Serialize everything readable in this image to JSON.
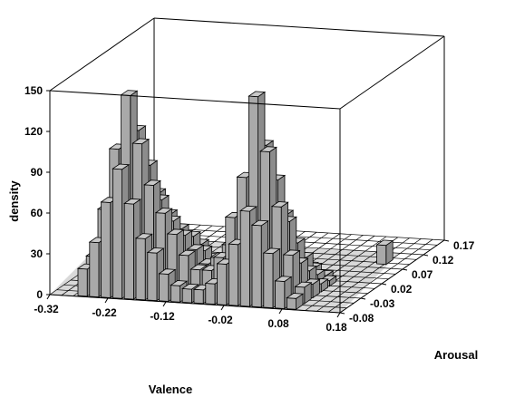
{
  "chart_data": {
    "type": "bar3d-histogram",
    "title": "",
    "xlabel": "Valence",
    "ylabel": "Arousal",
    "zlabel": "density",
    "x_ticks": [
      "-0.32",
      "-0.22",
      "-0.12",
      "-0.02",
      "0.08",
      "0.18"
    ],
    "y_ticks": [
      "-0.08",
      "-0.03",
      "0.02",
      "0.07",
      "0.12",
      "0.17"
    ],
    "z_ticks": [
      "0",
      "30",
      "60",
      "90",
      "120",
      "150"
    ],
    "xlim": [
      -0.32,
      0.18
    ],
    "ylim": [
      -0.08,
      0.17
    ],
    "zlim": [
      0,
      150
    ],
    "x_bin_centers": [
      -0.265,
      -0.245,
      -0.225,
      -0.205,
      -0.185,
      -0.165,
      -0.145,
      -0.125,
      -0.105,
      -0.085,
      -0.065,
      -0.045,
      -0.025,
      -0.005,
      0.015,
      0.035,
      0.055,
      0.075,
      0.095
    ],
    "y_bin_centers": [
      -0.07,
      -0.05,
      -0.03,
      -0.01,
      0.01,
      0.03,
      0.05
    ],
    "bars": [
      {
        "x": -0.265,
        "y": -0.07,
        "z": 20
      },
      {
        "x": -0.245,
        "y": -0.07,
        "z": 40
      },
      {
        "x": -0.225,
        "y": -0.07,
        "z": 70
      },
      {
        "x": -0.205,
        "y": -0.07,
        "z": 95
      },
      {
        "x": -0.185,
        "y": -0.07,
        "z": 70
      },
      {
        "x": -0.165,
        "y": -0.07,
        "z": 45
      },
      {
        "x": -0.145,
        "y": -0.07,
        "z": 35
      },
      {
        "x": -0.125,
        "y": -0.07,
        "z": 20
      },
      {
        "x": -0.105,
        "y": -0.07,
        "z": 12
      },
      {
        "x": -0.085,
        "y": -0.07,
        "z": 10
      },
      {
        "x": -0.065,
        "y": -0.07,
        "z": 10
      },
      {
        "x": -0.045,
        "y": -0.07,
        "z": 15
      },
      {
        "x": -0.025,
        "y": -0.07,
        "z": 30
      },
      {
        "x": -0.005,
        "y": -0.07,
        "z": 45
      },
      {
        "x": 0.015,
        "y": -0.07,
        "z": 70
      },
      {
        "x": 0.035,
        "y": -0.07,
        "z": 60
      },
      {
        "x": 0.055,
        "y": -0.07,
        "z": 40
      },
      {
        "x": 0.075,
        "y": -0.07,
        "z": 20
      },
      {
        "x": 0.095,
        "y": -0.07,
        "z": 8
      },
      {
        "x": -0.265,
        "y": -0.05,
        "z": 25
      },
      {
        "x": -0.245,
        "y": -0.05,
        "z": 60
      },
      {
        "x": -0.225,
        "y": -0.05,
        "z": 105
      },
      {
        "x": -0.205,
        "y": -0.05,
        "z": 145
      },
      {
        "x": -0.185,
        "y": -0.05,
        "z": 110
      },
      {
        "x": -0.165,
        "y": -0.05,
        "z": 80
      },
      {
        "x": -0.145,
        "y": -0.05,
        "z": 60
      },
      {
        "x": -0.125,
        "y": -0.05,
        "z": 45
      },
      {
        "x": -0.105,
        "y": -0.05,
        "z": 30
      },
      {
        "x": -0.085,
        "y": -0.05,
        "z": 20
      },
      {
        "x": -0.065,
        "y": -0.05,
        "z": 20
      },
      {
        "x": -0.045,
        "y": -0.05,
        "z": 30
      },
      {
        "x": -0.025,
        "y": -0.05,
        "z": 60
      },
      {
        "x": -0.005,
        "y": -0.05,
        "z": 90
      },
      {
        "x": 0.015,
        "y": -0.05,
        "z": 150
      },
      {
        "x": 0.035,
        "y": -0.05,
        "z": 110
      },
      {
        "x": 0.055,
        "y": -0.05,
        "z": 70
      },
      {
        "x": 0.075,
        "y": -0.05,
        "z": 35
      },
      {
        "x": 0.095,
        "y": -0.05,
        "z": 12
      },
      {
        "x": -0.265,
        "y": -0.03,
        "z": 15
      },
      {
        "x": -0.245,
        "y": -0.03,
        "z": 45
      },
      {
        "x": -0.225,
        "y": -0.03,
        "z": 80
      },
      {
        "x": -0.205,
        "y": -0.03,
        "z": 115
      },
      {
        "x": -0.185,
        "y": -0.03,
        "z": 90
      },
      {
        "x": -0.165,
        "y": -0.03,
        "z": 65
      },
      {
        "x": -0.145,
        "y": -0.03,
        "z": 50
      },
      {
        "x": -0.125,
        "y": -0.03,
        "z": 40
      },
      {
        "x": -0.105,
        "y": -0.03,
        "z": 30
      },
      {
        "x": -0.085,
        "y": -0.03,
        "z": 20
      },
      {
        "x": -0.065,
        "y": -0.03,
        "z": 25
      },
      {
        "x": -0.045,
        "y": -0.03,
        "z": 35
      },
      {
        "x": -0.025,
        "y": -0.03,
        "z": 55
      },
      {
        "x": -0.005,
        "y": -0.03,
        "z": 80
      },
      {
        "x": 0.015,
        "y": -0.03,
        "z": 110
      },
      {
        "x": 0.035,
        "y": -0.03,
        "z": 85
      },
      {
        "x": 0.055,
        "y": -0.03,
        "z": 55
      },
      {
        "x": 0.075,
        "y": -0.03,
        "z": 25
      },
      {
        "x": 0.095,
        "y": -0.03,
        "z": 10
      },
      {
        "x": -0.265,
        "y": -0.01,
        "z": 10
      },
      {
        "x": -0.245,
        "y": -0.01,
        "z": 30
      },
      {
        "x": -0.225,
        "y": -0.01,
        "z": 55
      },
      {
        "x": -0.205,
        "y": -0.01,
        "z": 75
      },
      {
        "x": -0.185,
        "y": -0.01,
        "z": 65
      },
      {
        "x": -0.165,
        "y": -0.01,
        "z": 50
      },
      {
        "x": -0.145,
        "y": -0.01,
        "z": 40
      },
      {
        "x": -0.125,
        "y": -0.01,
        "z": 35
      },
      {
        "x": -0.105,
        "y": -0.01,
        "z": 25
      },
      {
        "x": -0.085,
        "y": -0.01,
        "z": 15
      },
      {
        "x": -0.065,
        "y": -0.01,
        "z": 20
      },
      {
        "x": -0.045,
        "y": -0.01,
        "z": 30
      },
      {
        "x": -0.025,
        "y": -0.01,
        "z": 45
      },
      {
        "x": -0.005,
        "y": -0.01,
        "z": 60
      },
      {
        "x": 0.015,
        "y": -0.01,
        "z": 75
      },
      {
        "x": 0.035,
        "y": -0.01,
        "z": 55
      },
      {
        "x": 0.055,
        "y": -0.01,
        "z": 35
      },
      {
        "x": 0.075,
        "y": -0.01,
        "z": 15
      },
      {
        "x": 0.095,
        "y": -0.01,
        "z": 6
      },
      {
        "x": -0.265,
        "y": 0.01,
        "z": 5
      },
      {
        "x": -0.245,
        "y": 0.01,
        "z": 15
      },
      {
        "x": -0.225,
        "y": 0.01,
        "z": 30
      },
      {
        "x": -0.205,
        "y": 0.01,
        "z": 45
      },
      {
        "x": -0.185,
        "y": 0.01,
        "z": 40
      },
      {
        "x": -0.165,
        "y": 0.01,
        "z": 35
      },
      {
        "x": -0.145,
        "y": 0.01,
        "z": 30
      },
      {
        "x": -0.125,
        "y": 0.01,
        "z": 25
      },
      {
        "x": -0.105,
        "y": 0.01,
        "z": 15
      },
      {
        "x": -0.085,
        "y": 0.01,
        "z": 10
      },
      {
        "x": -0.065,
        "y": 0.01,
        "z": 15
      },
      {
        "x": -0.045,
        "y": 0.01,
        "z": 20
      },
      {
        "x": -0.025,
        "y": 0.01,
        "z": 30
      },
      {
        "x": -0.005,
        "y": 0.01,
        "z": 40
      },
      {
        "x": 0.015,
        "y": 0.01,
        "z": 45
      },
      {
        "x": 0.035,
        "y": 0.01,
        "z": 30
      },
      {
        "x": 0.055,
        "y": 0.01,
        "z": 20
      },
      {
        "x": 0.075,
        "y": 0.01,
        "z": 8
      },
      {
        "x": 0.095,
        "y": 0.01,
        "z": 4
      },
      {
        "x": -0.245,
        "y": 0.03,
        "z": 5
      },
      {
        "x": -0.225,
        "y": 0.03,
        "z": 12
      },
      {
        "x": -0.205,
        "y": 0.03,
        "z": 18
      },
      {
        "x": -0.185,
        "y": 0.03,
        "z": 20
      },
      {
        "x": -0.165,
        "y": 0.03,
        "z": 15
      },
      {
        "x": -0.145,
        "y": 0.03,
        "z": 15
      },
      {
        "x": -0.125,
        "y": 0.03,
        "z": 10
      },
      {
        "x": -0.105,
        "y": 0.03,
        "z": 8
      },
      {
        "x": -0.065,
        "y": 0.03,
        "z": 8
      },
      {
        "x": -0.045,
        "y": 0.03,
        "z": 10
      },
      {
        "x": -0.025,
        "y": 0.03,
        "z": 15
      },
      {
        "x": -0.005,
        "y": 0.03,
        "z": 20
      },
      {
        "x": 0.015,
        "y": 0.03,
        "z": 20
      },
      {
        "x": 0.035,
        "y": 0.03,
        "z": 12
      },
      {
        "x": 0.055,
        "y": 0.03,
        "z": 8
      },
      {
        "x": 0.075,
        "y": 0.03,
        "z": 3
      },
      {
        "x": -0.225,
        "y": 0.05,
        "z": 4
      },
      {
        "x": -0.205,
        "y": 0.05,
        "z": 6
      },
      {
        "x": -0.185,
        "y": 0.05,
        "z": 6
      },
      {
        "x": -0.165,
        "y": 0.05,
        "z": 5
      },
      {
        "x": -0.145,
        "y": 0.05,
        "z": 4
      },
      {
        "x": -0.045,
        "y": 0.05,
        "z": 4
      },
      {
        "x": -0.025,
        "y": 0.05,
        "z": 6
      },
      {
        "x": -0.005,
        "y": 0.05,
        "z": 6
      },
      {
        "x": 0.015,
        "y": 0.05,
        "z": 6
      },
      {
        "x": 0.035,
        "y": 0.05,
        "z": 4
      },
      {
        "x": 0.135,
        "y": 0.09,
        "z": 14
      }
    ]
  }
}
